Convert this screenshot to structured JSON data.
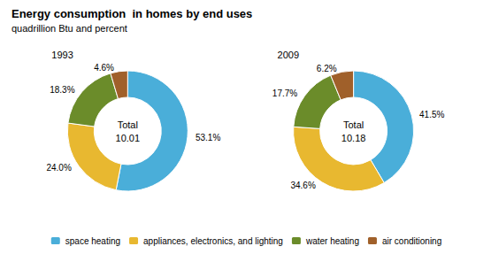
{
  "chart_data": [
    {
      "type": "pie",
      "title": "Energy consumption  in homes by end uses",
      "subtitle": "quadrillion Btu and percent",
      "annotations": [
        "1993",
        "Total",
        "10.01"
      ],
      "categories": [
        "space heating",
        "appliances, electronics, and lighting",
        "water heating",
        "air conditioning"
      ],
      "values": [
        53.1,
        24.0,
        18.3,
        4.6
      ],
      "value_labels": [
        "53.1%",
        "24.0%",
        "18.3%",
        "4.6%"
      ],
      "colors": [
        "#4aaed9",
        "#e8b830",
        "#6b8c2a",
        "#a0602a"
      ],
      "data_labels": true,
      "legend": "bottom"
    },
    {
      "type": "pie",
      "annotations": [
        "2009",
        "Total",
        "10.18"
      ],
      "categories": [
        "space heating",
        "appliances, electronics, and lighting",
        "water heating",
        "air conditioning"
      ],
      "values": [
        41.5,
        34.6,
        17.7,
        6.2
      ],
      "value_labels": [
        "41.5%",
        "34.6%",
        "17.7%",
        "6.2%"
      ],
      "colors": [
        "#4aaed9",
        "#e8b830",
        "#6b8c2a",
        "#a0602a"
      ],
      "data_labels": true,
      "legend": "bottom"
    }
  ]
}
